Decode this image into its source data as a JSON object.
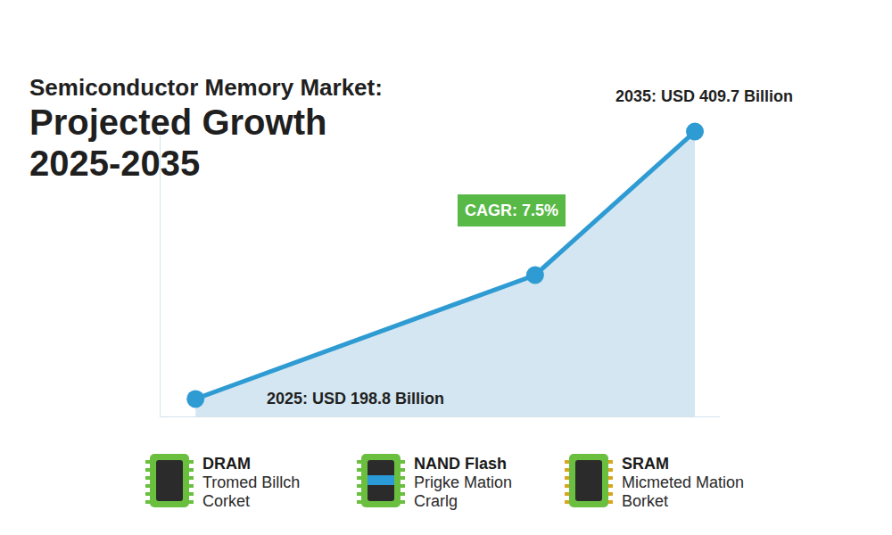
{
  "chart_data": {
    "type": "area",
    "title": "Semiconductor Memory Market:",
    "subtitle": "Projected Growth 2025-2035",
    "x": [
      2025,
      2031.8,
      2035
    ],
    "values": [
      198.8,
      296.5,
      409.7
    ],
    "color": "#2f9bd3",
    "marker": "circle",
    "xlim": [
      2024.3,
      2035.5
    ],
    "ylim": [
      185,
      415
    ],
    "grid": false,
    "tick_labels": false,
    "annotations": [
      {
        "text": "2025: USD 198.8 Billion",
        "x": 2025,
        "y": 198.8
      },
      {
        "text": "CAGR: 7.5%",
        "x": 2031.8,
        "y": 296.5
      },
      {
        "text": "2035: USD 409.7 Billion",
        "x": 2035,
        "y": 409.7
      }
    ]
  },
  "footer": {
    "items": [
      {
        "name": "DRAM",
        "description": [
          "Tromed Billch",
          "Corket"
        ]
      },
      {
        "name": "NAND Flash",
        "description": [
          "Prigke Mation",
          "Crarlg"
        ]
      },
      {
        "name": "SRAM",
        "description": [
          "Micmeted Mation",
          "Borket"
        ]
      }
    ]
  }
}
